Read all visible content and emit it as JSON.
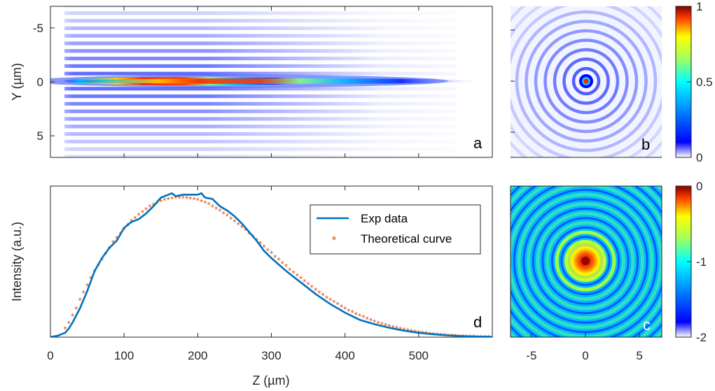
{
  "colors": {
    "exp_line": "#0072BD",
    "theory_marker": "#D95319",
    "axis": "#262626"
  },
  "chart_data": [
    {
      "panel": "a",
      "type": "heatmap",
      "xlabel": "",
      "ylabel": "Y (µm)",
      "yticks": [
        "-5",
        "0",
        "5"
      ],
      "ylim": [
        -7,
        7
      ],
      "xlim": [
        0,
        600
      ],
      "colormap": "jet-white",
      "description_values": {
        "beam_center_y": 0,
        "beam_extent_z": [
          10,
          600
        ],
        "peak_z_range": [
          150,
          250
        ],
        "side_fringes": "parallel horizontal fringes decaying with z"
      }
    },
    {
      "panel": "b",
      "type": "heatmap",
      "pattern": "concentric rings, bright center",
      "colorbar": {
        "ticks": [
          "0",
          "0.5",
          "1"
        ],
        "range": [
          0,
          1
        ]
      }
    },
    {
      "panel": "c",
      "type": "heatmap",
      "pattern": "concentric rings (log scale), bright center",
      "xticks": [
        "-5",
        "0",
        "5"
      ],
      "colorbar": {
        "ticks": [
          "-2",
          "-1",
          "0"
        ],
        "range": [
          -2,
          0
        ]
      }
    },
    {
      "panel": "d",
      "type": "line",
      "xlabel": "Z (µm)",
      "ylabel": "Intensity (a.u.)",
      "xticks": [
        "0",
        "100",
        "200",
        "300",
        "400",
        "500"
      ],
      "xlim": [
        0,
        600
      ],
      "ylim": [
        0,
        1.05
      ],
      "legend": {
        "placement": "top-right",
        "entries": [
          "Exp data",
          "Theoretical curve"
        ]
      },
      "series": [
        {
          "name": "Exp data",
          "style": "line",
          "x": [
            0,
            10,
            20,
            25,
            30,
            40,
            50,
            60,
            70,
            80,
            90,
            100,
            110,
            120,
            130,
            140,
            150,
            160,
            165,
            170,
            180,
            190,
            200,
            205,
            210,
            220,
            230,
            240,
            250,
            260,
            270,
            280,
            290,
            300,
            320,
            340,
            360,
            380,
            400,
            420,
            440,
            460,
            480,
            500,
            520,
            540,
            560,
            580,
            600
          ],
          "y": [
            0.0,
            0.01,
            0.03,
            0.06,
            0.1,
            0.2,
            0.32,
            0.46,
            0.55,
            0.62,
            0.67,
            0.76,
            0.8,
            0.82,
            0.86,
            0.91,
            0.97,
            0.99,
            1.0,
            0.98,
            0.99,
            0.99,
            0.99,
            1.0,
            0.97,
            0.96,
            0.91,
            0.88,
            0.84,
            0.79,
            0.73,
            0.67,
            0.6,
            0.55,
            0.46,
            0.38,
            0.3,
            0.23,
            0.17,
            0.12,
            0.09,
            0.065,
            0.045,
            0.03,
            0.02,
            0.012,
            0.007,
            0.004,
            0.002
          ]
        },
        {
          "name": "Theoretical curve",
          "style": "markers-asterisk",
          "x": [
            20,
            25,
            30,
            35,
            40,
            45,
            50,
            55,
            60,
            65,
            70,
            75,
            80,
            85,
            90,
            95,
            100,
            105,
            110,
            115,
            120,
            125,
            130,
            135,
            140,
            145,
            150,
            155,
            160,
            165,
            170,
            175,
            180,
            185,
            190,
            195,
            200,
            205,
            210,
            215,
            220,
            225,
            230,
            235,
            240,
            245,
            250,
            255,
            260,
            265,
            270,
            275,
            280,
            285,
            290,
            295,
            300,
            305,
            310,
            315,
            320,
            325,
            330,
            335,
            340,
            345,
            350,
            355,
            360,
            365,
            370,
            375,
            380,
            385,
            390,
            395,
            400,
            405,
            410,
            415,
            420,
            425,
            430,
            435,
            440,
            445,
            450,
            455,
            460,
            465,
            470,
            475,
            480,
            485,
            490,
            495,
            500,
            505,
            510,
            515,
            520,
            525,
            530,
            535,
            540,
            545,
            550,
            555,
            560,
            565,
            570,
            575,
            580,
            585,
            590,
            595,
            600
          ],
          "y": [
            0.06,
            0.1,
            0.15,
            0.2,
            0.26,
            0.31,
            0.36,
            0.41,
            0.46,
            0.5,
            0.54,
            0.58,
            0.62,
            0.66,
            0.69,
            0.72,
            0.75,
            0.78,
            0.81,
            0.83,
            0.85,
            0.87,
            0.89,
            0.91,
            0.92,
            0.935,
            0.945,
            0.955,
            0.96,
            0.965,
            0.97,
            0.97,
            0.97,
            0.968,
            0.965,
            0.96,
            0.955,
            0.945,
            0.935,
            0.925,
            0.91,
            0.895,
            0.88,
            0.86,
            0.845,
            0.825,
            0.805,
            0.785,
            0.765,
            0.745,
            0.72,
            0.7,
            0.675,
            0.655,
            0.63,
            0.605,
            0.585,
            0.56,
            0.54,
            0.515,
            0.495,
            0.47,
            0.45,
            0.43,
            0.41,
            0.39,
            0.37,
            0.35,
            0.33,
            0.31,
            0.295,
            0.275,
            0.26,
            0.245,
            0.23,
            0.215,
            0.2,
            0.185,
            0.175,
            0.16,
            0.15,
            0.14,
            0.13,
            0.12,
            0.11,
            0.1,
            0.093,
            0.085,
            0.078,
            0.071,
            0.065,
            0.059,
            0.053,
            0.048,
            0.043,
            0.039,
            0.035,
            0.031,
            0.028,
            0.025,
            0.022,
            0.019,
            0.017,
            0.015,
            0.013,
            0.011,
            0.01,
            0.008,
            0.007,
            0.006,
            0.005,
            0.004,
            0.003,
            0.003,
            0.002,
            0.002,
            0.001
          ]
        }
      ]
    }
  ]
}
